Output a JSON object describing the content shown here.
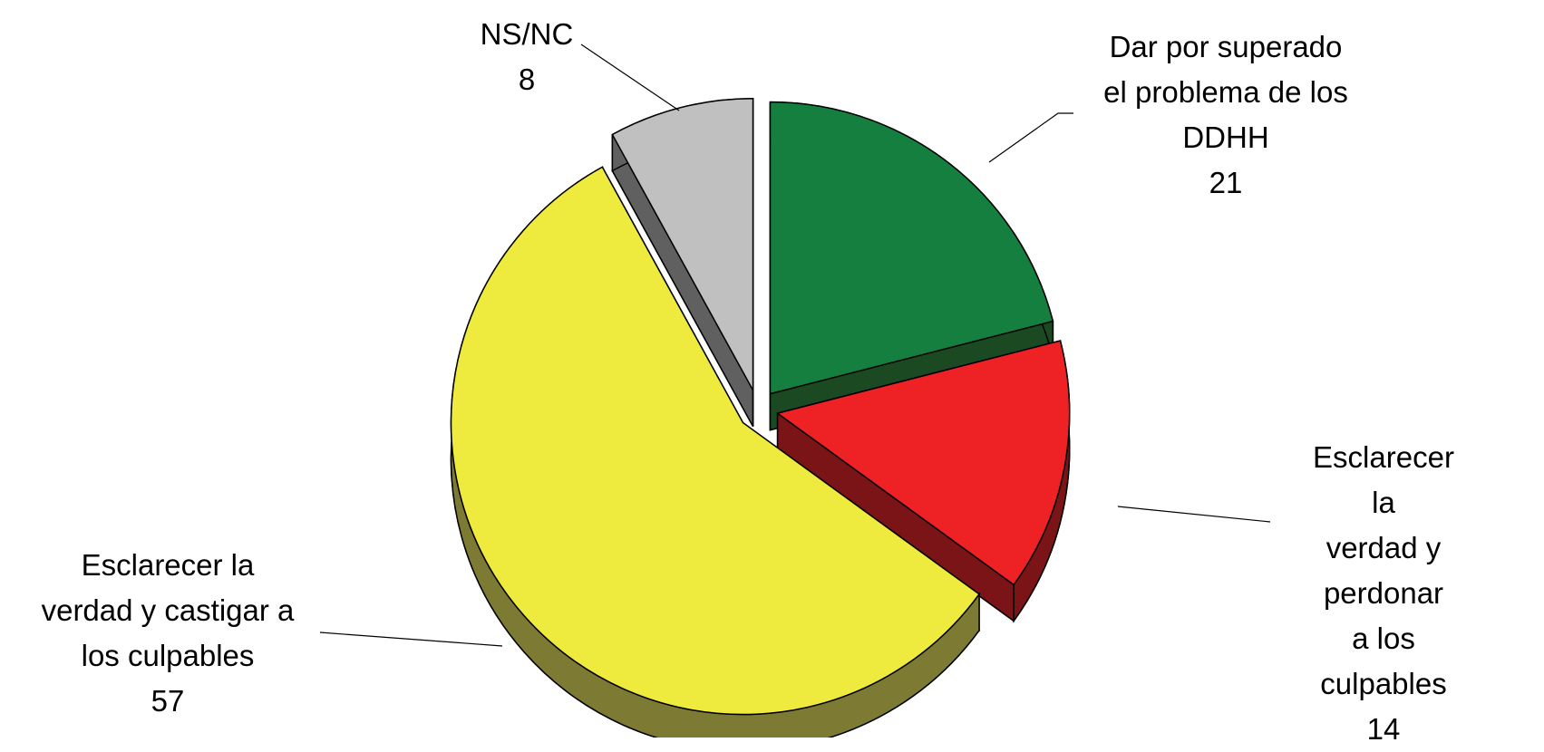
{
  "chart_data": {
    "type": "pie",
    "categories": [
      "Dar por superado\nel problema de los\nDDHH",
      "Esclarecer la\nverdad y perdonar\na los culpables",
      "Esclarecer la\nverdad y castigar a\nlos culpables",
      "NS/NC"
    ],
    "values": [
      21,
      14,
      57,
      8
    ],
    "colors": [
      "#147f3f",
      "#ee2224",
      "#eeea3e",
      "#c0c0c0"
    ],
    "side_colors": [
      "#1b4a22",
      "#7b1416",
      "#7d7b33",
      "#606060"
    ]
  }
}
